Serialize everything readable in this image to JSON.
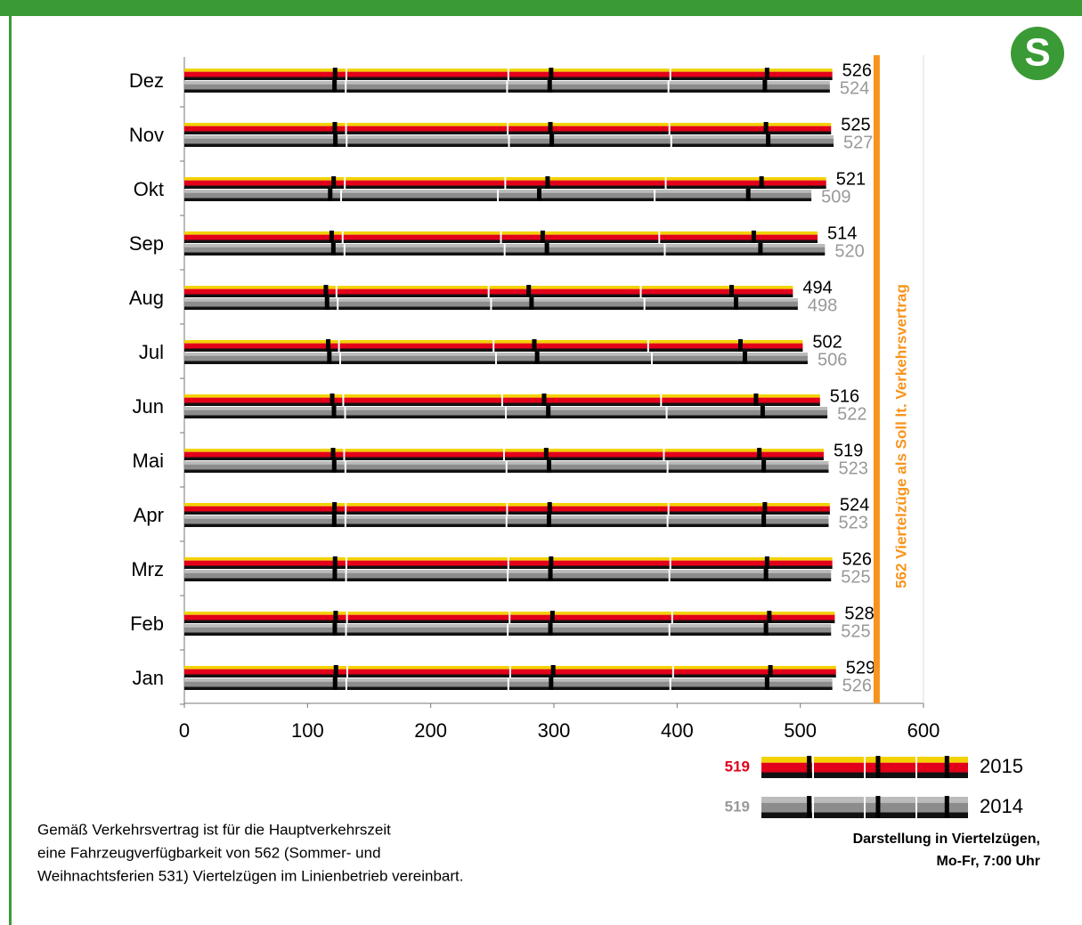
{
  "chart_data": {
    "type": "bar",
    "orientation": "horizontal",
    "categories": [
      "Dez",
      "Nov",
      "Okt",
      "Sep",
      "Aug",
      "Jul",
      "Jun",
      "Mai",
      "Apr",
      "Mrz",
      "Feb",
      "Jan"
    ],
    "series": [
      {
        "name": "2015",
        "color": "#e2001a",
        "label_color": "#000000",
        "legend_value": 519,
        "legend_color": "#e2001a",
        "values": [
          526,
          525,
          521,
          514,
          494,
          502,
          516,
          519,
          524,
          526,
          528,
          529
        ]
      },
      {
        "name": "2014",
        "color": "#8c8c8c",
        "label_color": "#999999",
        "legend_value": 519,
        "legend_color": "#999999",
        "values": [
          524,
          527,
          509,
          520,
          498,
          506,
          522,
          523,
          523,
          525,
          525,
          526
        ]
      }
    ],
    "xlim": [
      0,
      600
    ],
    "xticks": [
      0,
      100,
      200,
      300,
      400,
      500,
      600
    ],
    "grid": false,
    "reference_line": {
      "value": 562,
      "label": "562 Viertelzüge als Soll lt. Verkehrsvertrag",
      "color": "#f7941d"
    },
    "note": [
      "Darstellung in Viertelzügen,",
      "Mo-Fr, 7:00 Uhr"
    ],
    "footnote": [
      "Gemäß Verkehrsvertrag ist für die Hauptverkehrszeit",
      "eine Fahrzeugverfügbarkeit von 562 (Sommer- und",
      "Weihnachtsferien 531) Viertelzügen im Linienbetrieb vereinbart."
    ],
    "logo": "S"
  }
}
